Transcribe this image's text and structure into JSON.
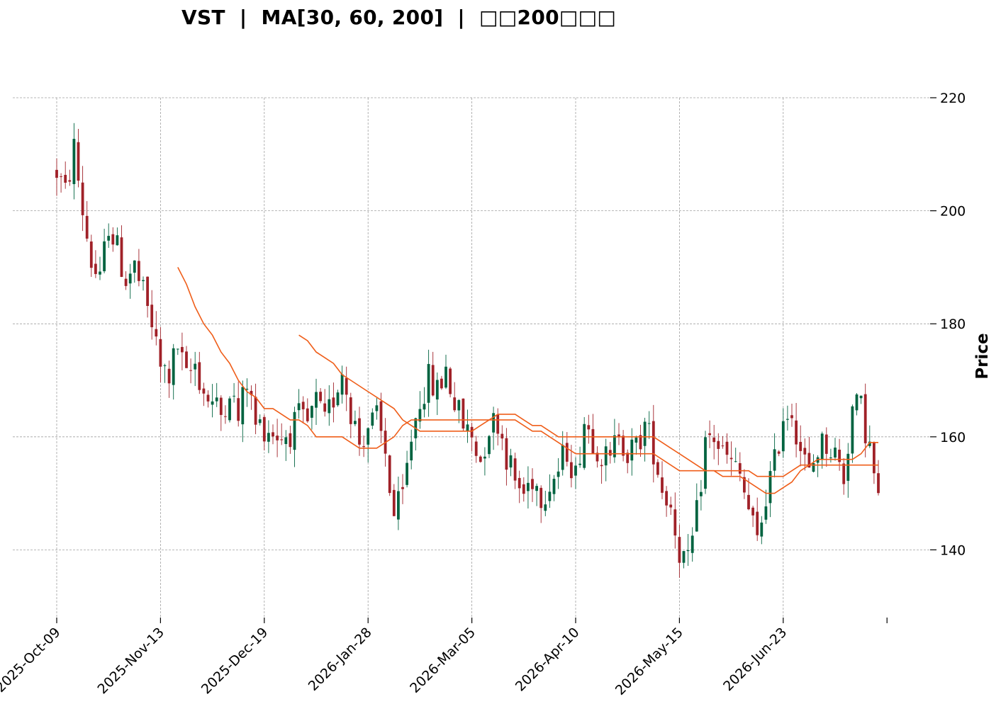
{
  "chart_data": {
    "type": "candlestick",
    "title": "VST  |  MA[30, 60, 200]  |  □□200□□□",
    "ylabel": "Price",
    "ylim": [
      128,
      220
    ],
    "y_ticks": [
      140,
      160,
      180,
      200,
      220
    ],
    "x_tick_labels": [
      "2025-Oct-09",
      "2025-Nov-13",
      "2025-Dec-19",
      "2026-Jan-28",
      "2026-Mar-05",
      "2026-Apr-10",
      "2026-May-15",
      "2026-Jun-23"
    ],
    "x_tick_index": [
      0,
      24,
      48,
      72,
      96,
      120,
      144,
      168
    ],
    "grid": true,
    "colors": {
      "up": "#006340",
      "down": "#a02128",
      "ma": "#ef5e1a",
      "grid": "#a0a0a0"
    },
    "anchors": [
      [
        0,
        207
      ],
      [
        2,
        203
      ],
      [
        4,
        211
      ],
      [
        6,
        200
      ],
      [
        8,
        191
      ],
      [
        10,
        187
      ],
      [
        12,
        198
      ],
      [
        14,
        193
      ],
      [
        16,
        188
      ],
      [
        18,
        190
      ],
      [
        20,
        185
      ],
      [
        22,
        180
      ],
      [
        24,
        172
      ],
      [
        26,
        171
      ],
      [
        28,
        176
      ],
      [
        30,
        170
      ],
      [
        32,
        173
      ],
      [
        34,
        168
      ],
      [
        36,
        166
      ],
      [
        38,
        164
      ],
      [
        40,
        169
      ],
      [
        42,
        163
      ],
      [
        44,
        170
      ],
      [
        46,
        162
      ],
      [
        48,
        162
      ],
      [
        50,
        161
      ],
      [
        52,
        160
      ],
      [
        54,
        161
      ],
      [
        56,
        163
      ],
      [
        58,
        162
      ],
      [
        60,
        166
      ],
      [
        62,
        162
      ],
      [
        64,
        167
      ],
      [
        66,
        172
      ],
      [
        68,
        165
      ],
      [
        70,
        159
      ],
      [
        72,
        162
      ],
      [
        74,
        163
      ],
      [
        76,
        157
      ],
      [
        78,
        146
      ],
      [
        80,
        149
      ],
      [
        82,
        160
      ],
      [
        84,
        167
      ],
      [
        86,
        170
      ],
      [
        88,
        168
      ],
      [
        90,
        172
      ],
      [
        92,
        166
      ],
      [
        94,
        162
      ],
      [
        96,
        160
      ],
      [
        98,
        156
      ],
      [
        100,
        162
      ],
      [
        102,
        163
      ],
      [
        104,
        157
      ],
      [
        106,
        152
      ],
      [
        108,
        150
      ],
      [
        110,
        153
      ],
      [
        112,
        150
      ],
      [
        114,
        152
      ],
      [
        116,
        154
      ],
      [
        118,
        158
      ],
      [
        120,
        153
      ],
      [
        122,
        163
      ],
      [
        124,
        160
      ],
      [
        126,
        157
      ],
      [
        128,
        155
      ],
      [
        130,
        162
      ],
      [
        132,
        157
      ],
      [
        134,
        158
      ],
      [
        136,
        162
      ],
      [
        138,
        158
      ],
      [
        140,
        151
      ],
      [
        142,
        148
      ],
      [
        144,
        140
      ],
      [
        146,
        137
      ],
      [
        148,
        146
      ],
      [
        150,
        159
      ],
      [
        152,
        160
      ],
      [
        154,
        157
      ],
      [
        156,
        155
      ],
      [
        158,
        153
      ],
      [
        160,
        147
      ],
      [
        162,
        141
      ],
      [
        164,
        150
      ],
      [
        166,
        155
      ],
      [
        168,
        164
      ],
      [
        170,
        165
      ],
      [
        172,
        158
      ],
      [
        174,
        153
      ],
      [
        176,
        158
      ],
      [
        178,
        159
      ],
      [
        180,
        157
      ],
      [
        182,
        153
      ],
      [
        184,
        165
      ],
      [
        186,
        165
      ],
      [
        188,
        158
      ],
      [
        190,
        148
      ]
    ],
    "ma30": [
      [
        28,
        190
      ],
      [
        30,
        187
      ],
      [
        32,
        183
      ],
      [
        34,
        180
      ],
      [
        36,
        178
      ],
      [
        38,
        175
      ],
      [
        40,
        173
      ],
      [
        42,
        170
      ],
      [
        44,
        168
      ],
      [
        46,
        167
      ],
      [
        48,
        165
      ],
      [
        50,
        165
      ],
      [
        52,
        164
      ],
      [
        54,
        163
      ],
      [
        56,
        163
      ],
      [
        58,
        162
      ],
      [
        60,
        160
      ],
      [
        62,
        160
      ],
      [
        64,
        160
      ],
      [
        66,
        160
      ],
      [
        68,
        159
      ],
      [
        70,
        158
      ],
      [
        72,
        158
      ],
      [
        74,
        158
      ],
      [
        76,
        159
      ],
      [
        78,
        160
      ],
      [
        80,
        162
      ],
      [
        82,
        163
      ],
      [
        84,
        163
      ],
      [
        86,
        163
      ],
      [
        88,
        163
      ],
      [
        90,
        163
      ],
      [
        92,
        163
      ],
      [
        94,
        163
      ],
      [
        96,
        163
      ],
      [
        98,
        163
      ],
      [
        100,
        163
      ],
      [
        102,
        163
      ],
      [
        104,
        163
      ],
      [
        106,
        163
      ],
      [
        108,
        162
      ],
      [
        110,
        161
      ],
      [
        112,
        161
      ],
      [
        114,
        160
      ],
      [
        116,
        159
      ],
      [
        118,
        158
      ],
      [
        120,
        157
      ],
      [
        122,
        157
      ],
      [
        124,
        157
      ],
      [
        126,
        157
      ],
      [
        128,
        157
      ],
      [
        130,
        157
      ],
      [
        132,
        157
      ],
      [
        134,
        157
      ],
      [
        136,
        157
      ],
      [
        138,
        157
      ],
      [
        140,
        156
      ],
      [
        142,
        155
      ],
      [
        144,
        154
      ],
      [
        146,
        154
      ],
      [
        148,
        154
      ],
      [
        150,
        154
      ],
      [
        152,
        154
      ],
      [
        154,
        153
      ],
      [
        156,
        153
      ],
      [
        158,
        153
      ],
      [
        160,
        152
      ],
      [
        162,
        151
      ],
      [
        164,
        150
      ],
      [
        166,
        150
      ],
      [
        168,
        151
      ],
      [
        170,
        152
      ],
      [
        172,
        154
      ],
      [
        174,
        155
      ],
      [
        176,
        155
      ],
      [
        178,
        155
      ],
      [
        180,
        155
      ],
      [
        182,
        155
      ],
      [
        184,
        155
      ],
      [
        186,
        155
      ],
      [
        188,
        155
      ],
      [
        190,
        155
      ]
    ],
    "ma60": [
      [
        56,
        178
      ],
      [
        58,
        177
      ],
      [
        60,
        175
      ],
      [
        62,
        174
      ],
      [
        64,
        173
      ],
      [
        66,
        171
      ],
      [
        68,
        170
      ],
      [
        70,
        169
      ],
      [
        72,
        168
      ],
      [
        74,
        167
      ],
      [
        76,
        166
      ],
      [
        78,
        165
      ],
      [
        80,
        163
      ],
      [
        82,
        162
      ],
      [
        84,
        161
      ],
      [
        86,
        161
      ],
      [
        88,
        161
      ],
      [
        90,
        161
      ],
      [
        92,
        161
      ],
      [
        94,
        161
      ],
      [
        96,
        161
      ],
      [
        98,
        162
      ],
      [
        100,
        163
      ],
      [
        102,
        164
      ],
      [
        104,
        164
      ],
      [
        106,
        164
      ],
      [
        108,
        163
      ],
      [
        110,
        162
      ],
      [
        112,
        162
      ],
      [
        114,
        161
      ],
      [
        116,
        160
      ],
      [
        118,
        160
      ],
      [
        120,
        160
      ],
      [
        122,
        160
      ],
      [
        124,
        160
      ],
      [
        126,
        160
      ],
      [
        128,
        160
      ],
      [
        130,
        160
      ],
      [
        132,
        160
      ],
      [
        134,
        160
      ],
      [
        136,
        160
      ],
      [
        138,
        160
      ],
      [
        140,
        159
      ],
      [
        142,
        158
      ],
      [
        144,
        157
      ],
      [
        146,
        156
      ],
      [
        148,
        155
      ],
      [
        150,
        154
      ],
      [
        152,
        154
      ],
      [
        154,
        154
      ],
      [
        156,
        154
      ],
      [
        158,
        154
      ],
      [
        160,
        154
      ],
      [
        162,
        153
      ],
      [
        164,
        153
      ],
      [
        166,
        153
      ],
      [
        168,
        153
      ],
      [
        170,
        154
      ],
      [
        172,
        155
      ],
      [
        174,
        155
      ],
      [
        176,
        156
      ],
      [
        178,
        156
      ],
      [
        180,
        156
      ],
      [
        182,
        156
      ],
      [
        184,
        156
      ],
      [
        186,
        157
      ],
      [
        188,
        159
      ],
      [
        190,
        159
      ]
    ]
  }
}
